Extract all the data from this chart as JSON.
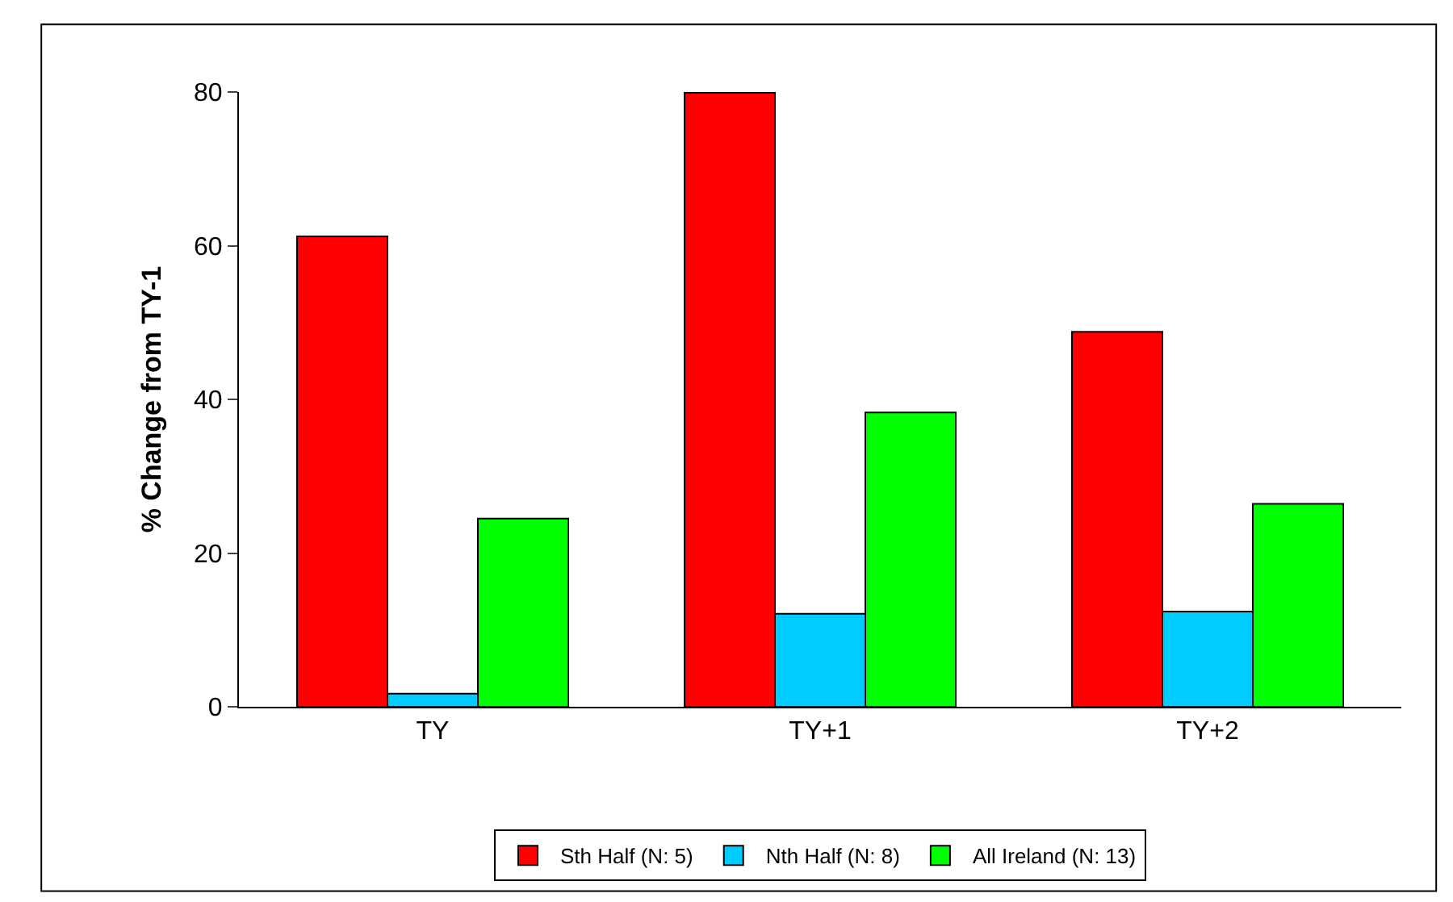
{
  "chart_data": {
    "type": "bar",
    "ylabel": "% Change from TY-1",
    "categories": [
      "TY",
      "TY+1",
      "TY+2"
    ],
    "series": [
      {
        "name": "Sth Half (N: 5)",
        "color": "#ff0000",
        "values": [
          61.2,
          79.9,
          48.8
        ]
      },
      {
        "name": "Nth Half (N: 8)",
        "color": "#00ccff",
        "values": [
          1.7,
          12.1,
          12.4
        ]
      },
      {
        "name": "All Ireland (N: 13)",
        "color": "#00ff00",
        "values": [
          24.5,
          38.3,
          26.4
        ]
      }
    ],
    "ylim": [
      0,
      80
    ],
    "yticks": [
      0,
      20,
      40,
      60,
      80
    ],
    "legend": "bottom"
  }
}
